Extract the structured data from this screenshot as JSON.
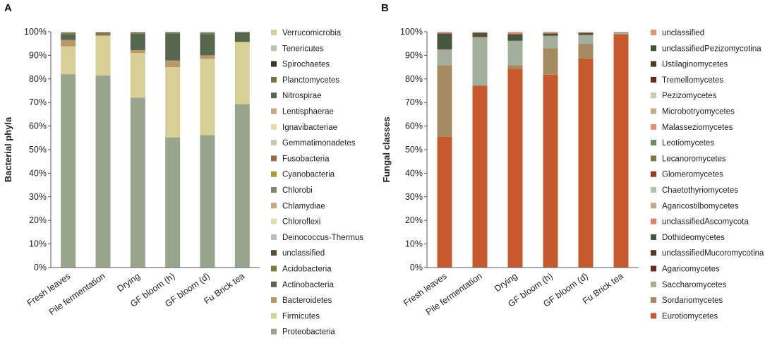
{
  "figure": {
    "panel_labels": [
      "A",
      "B"
    ]
  },
  "chart_data": [
    {
      "type": "bar",
      "stacked": true,
      "panel": "A",
      "ylabel": "Bacterial phyla",
      "xlabel": "",
      "ylim": [
        0,
        100
      ],
      "yticks": [
        "0%",
        "10%",
        "20%",
        "30%",
        "40%",
        "50%",
        "60%",
        "70%",
        "80%",
        "90%",
        "100%"
      ],
      "categories": [
        "Fresh leaves",
        "Pile fermentation",
        "Drying",
        "GF bloom (h)",
        "GF bloom (d)",
        "Fu Brick tea"
      ],
      "legend": [
        "Verrucomicrobia",
        "Tenericutes",
        "Spirochaetes",
        "Planctomycetes",
        "Nitrospirae",
        "Lentisphaerae",
        "Ignavibacteriae",
        "Gemmatimonadetes",
        "Fusobacteria",
        "Cyanobacteria",
        "Chlorobi",
        "Chlamydiae",
        "Chloroflexi",
        "Deinococcus-Thermus",
        "unclassified",
        "Acidobacteria",
        "Actinobacteria",
        "Bacteroidetes",
        "Firmicutes",
        "Proteobacteria"
      ],
      "series": [
        {
          "name": "Proteobacteria",
          "color": "#98a58c",
          "values": [
            82,
            81.5,
            72,
            55.2,
            56.2,
            69.3
          ]
        },
        {
          "name": "Firmicutes",
          "color": "#d8cf96",
          "values": [
            11.8,
            16.7,
            19,
            29.8,
            32.3,
            26.2
          ]
        },
        {
          "name": "Bacteroidetes",
          "color": "#b9996a",
          "values": [
            2.7,
            0.6,
            1.2,
            2.8,
            1.5,
            0.3
          ]
        },
        {
          "name": "Actinobacteria",
          "color": "#57664f",
          "values": [
            2.4,
            0.5,
            7,
            11.5,
            9,
            3.9
          ]
        },
        {
          "name": "Acidobacteria",
          "color": "#7d7a3e",
          "values": [
            0.4,
            0.2,
            0.3,
            0.3,
            0.3,
            0.1
          ]
        },
        {
          "name": "unclassified",
          "color": "#5a4a33",
          "values": [
            0.3,
            0.2,
            0.2,
            0.2,
            0.3,
            0.1
          ]
        },
        {
          "name": "Deinococcus-Thermus",
          "color": "#b8c2b2",
          "values": [
            0.2,
            0.1,
            0.1,
            0.1,
            0.2,
            0.05
          ]
        },
        {
          "name": "Chloroflexi",
          "color": "#e4d9a7",
          "values": [
            0.1,
            0.1,
            0.1,
            0.05,
            0.1,
            0.05
          ]
        },
        {
          "name": "Chlamydiae",
          "color": "#c8a782",
          "values": [
            0.05,
            0.05,
            0.05,
            0.02,
            0.05,
            0.03
          ]
        },
        {
          "name": "Chlorobi",
          "color": "#7c8a72",
          "values": [
            0.05,
            0.05,
            0.05,
            0.02,
            0.05,
            0.02
          ]
        }
      ]
    },
    {
      "type": "bar",
      "stacked": true,
      "panel": "B",
      "ylabel": "Fungal classes",
      "xlabel": "",
      "ylim": [
        0,
        100
      ],
      "yticks": [
        "0%",
        "10%",
        "20%",
        "30%",
        "40%",
        "50%",
        "60%",
        "70%",
        "80%",
        "90%",
        "100%"
      ],
      "categories": [
        "Fresh leaves",
        "Pile fermentation",
        "Drying",
        "GF bloom (h)",
        "GF bloom (d)",
        "Fu Brick tea"
      ],
      "legend": [
        "unclassified",
        "unclassifiedPezizomycotina",
        "Ustilaginomycetes",
        "Tremellomycetes",
        "Pezizomycetes",
        "Microbotryomycetes",
        "Malasseziomycetes",
        "Leotiomycetes",
        "Lecanoromycetes",
        "Glomeromycetes",
        "Chaetothyriomycetes",
        "Agaricostilbomycetes",
        "unclassifiedAscomycota",
        "Dothideomycetes",
        "unclassifiedMucoromycotina",
        "Agaricomycetes",
        "Saccharomycetes",
        "Sordariomycetes",
        "Eurotiomycetes"
      ],
      "series": [
        {
          "name": "Eurotiomycetes",
          "color": "#c65a2e",
          "values": [
            55.5,
            77,
            84.3,
            81.8,
            88.7,
            99
          ]
        },
        {
          "name": "Sordariomycetes",
          "color": "#a58a62",
          "values": [
            30.3,
            0.5,
            1.5,
            11.2,
            6.2,
            0
          ]
        },
        {
          "name": "Saccharomycetes",
          "color": "#a3af9b",
          "values": [
            6.7,
            20.2,
            10.3,
            5.2,
            3.7,
            0.8
          ]
        },
        {
          "name": "Agaricomycetes",
          "color": "#6e2a18",
          "values": [
            0.2,
            0.1,
            0.1,
            0.1,
            0.1,
            0
          ]
        },
        {
          "name": "unclassifiedMucoromycotina",
          "color": "#4e3c28",
          "values": [
            0.1,
            0.1,
            0.1,
            0.1,
            0.1,
            0
          ]
        },
        {
          "name": "Dothideomycetes",
          "color": "#45553e",
          "values": [
            6.5,
            1.6,
            2.7,
            0.9,
            0.7,
            0.1
          ]
        },
        {
          "name": "unclassifiedAscomycota",
          "color": "#e0826a",
          "values": [
            0.3,
            0.2,
            0.5,
            0.3,
            0.2,
            0.05
          ]
        },
        {
          "name": "Agaricostilbomycetes",
          "color": "#c4ab86",
          "values": [
            0.1,
            0.1,
            0.1,
            0.1,
            0.1,
            0
          ]
        },
        {
          "name": "Chaetothyriomycetes",
          "color": "#b9c0b4",
          "values": [
            0.1,
            0.1,
            0.1,
            0.1,
            0.1,
            0.05
          ]
        },
        {
          "name": "Glomeromycetes",
          "color": "#983d1f",
          "values": [
            0.1,
            0.05,
            0.1,
            0.1,
            0.05,
            0
          ]
        },
        {
          "name": "unclassified",
          "color": "#e59070",
          "values": [
            0.1,
            0.05,
            0.2,
            0.1,
            0.05,
            0
          ]
        }
      ]
    }
  ],
  "legend_colors": {
    "A": [
      "#d8cf96",
      "#b8c2b2",
      "#3f3524",
      "#7a7238",
      "#57664f",
      "#c8a782",
      "#e4d9a7",
      "#c9c7bb",
      "#9a6a45",
      "#a89c3a",
      "#7c8a72",
      "#c8a782",
      "#e4d9a7",
      "#b8c2b2",
      "#5a4a33",
      "#7d7a3e",
      "#57664f",
      "#b9996a",
      "#d8cf96",
      "#98a58c"
    ],
    "B": [
      "#e59070",
      "#45553e",
      "#4e3c28",
      "#6e2a18",
      "#c9c7bb",
      "#c4ab86",
      "#e59070",
      "#6f8b60",
      "#7d7a3e",
      "#983d1f",
      "#b9c0b4",
      "#c4ab86",
      "#e0826a",
      "#45553e",
      "#4e3c28",
      "#6e2a18",
      "#a3af9b",
      "#a58a62",
      "#c65a2e"
    ]
  }
}
